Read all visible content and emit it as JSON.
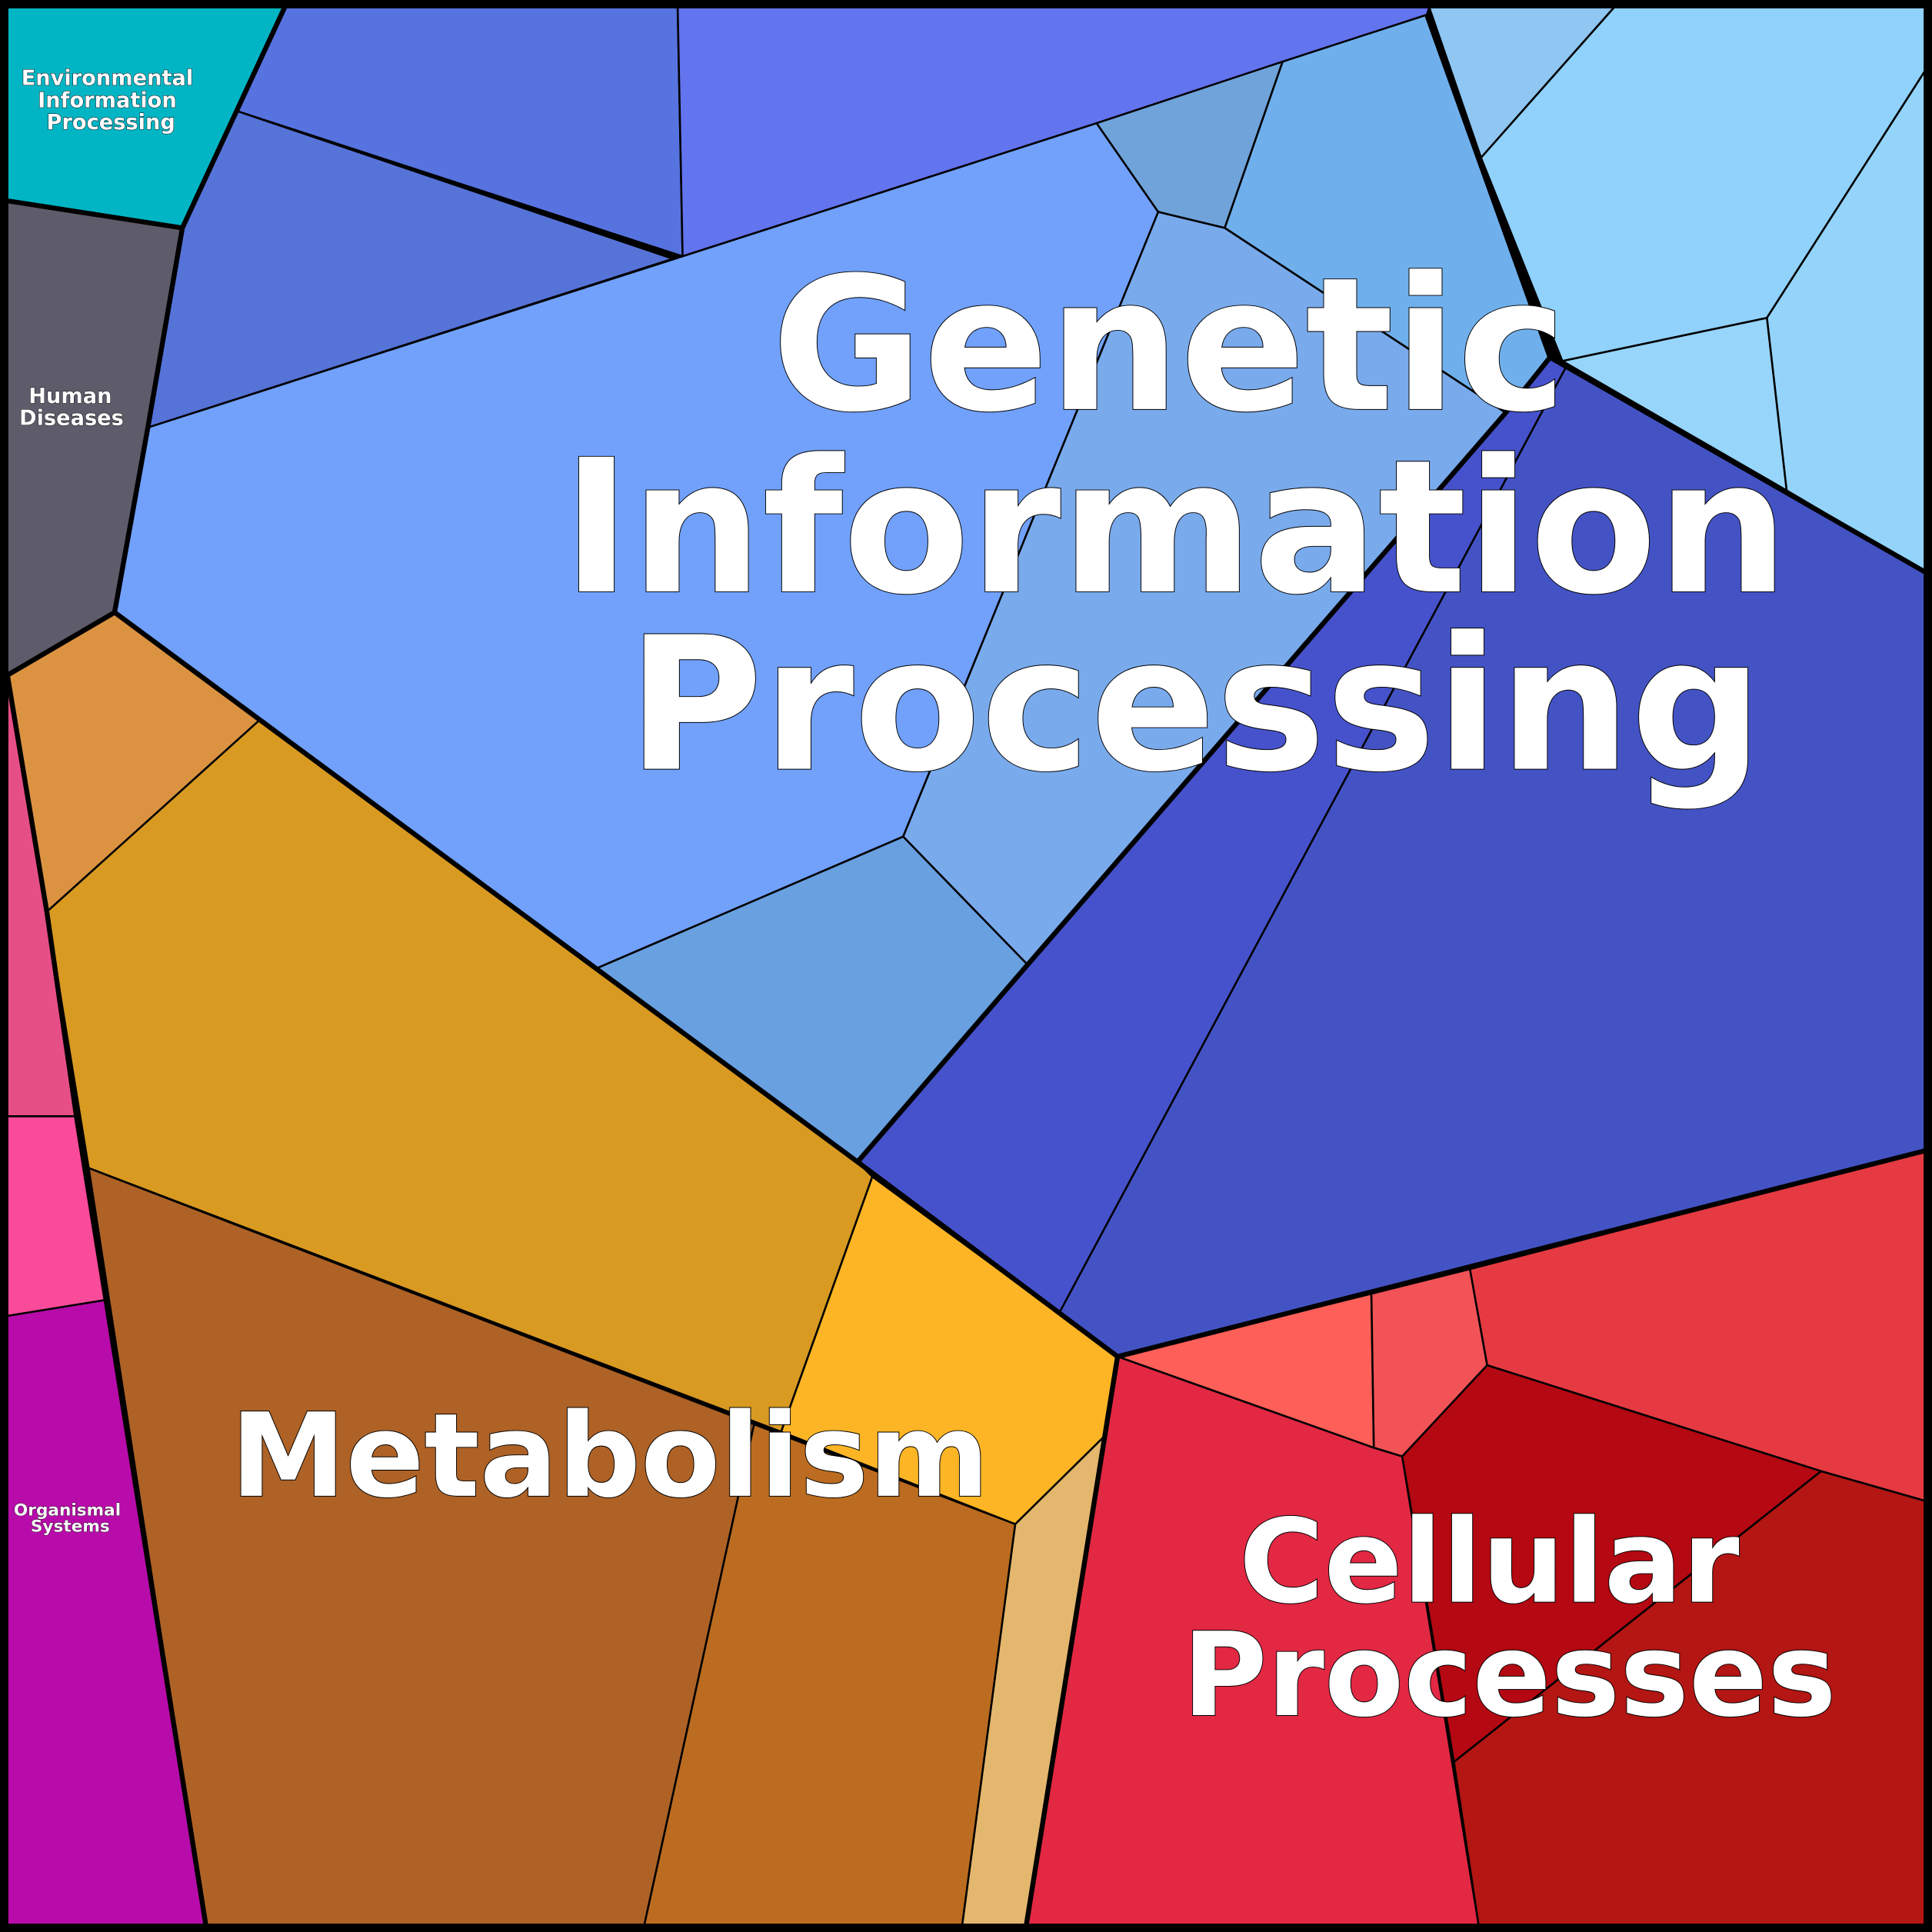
{
  "categories": {
    "genetic": {
      "label_lines": [
        "Genetic",
        "Information",
        "Processing"
      ],
      "color": "#71a1fb"
    },
    "metabolism": {
      "label_lines": [
        "Metabolism"
      ],
      "color": "#d99a22"
    },
    "cellular": {
      "label_lines": [
        "Cellular",
        "Processes"
      ],
      "color": "#e22843"
    },
    "environmental": {
      "label_lines": [
        "Environmental",
        "Information",
        "Processing"
      ],
      "color": "#02b5c4"
    },
    "human_diseases": {
      "label_lines": [
        "Human",
        "Diseases"
      ],
      "color": "#5e5b6a"
    },
    "organismal": {
      "label_lines": [
        "Organismal",
        "Systems"
      ],
      "color": "#b80caa"
    }
  }
}
